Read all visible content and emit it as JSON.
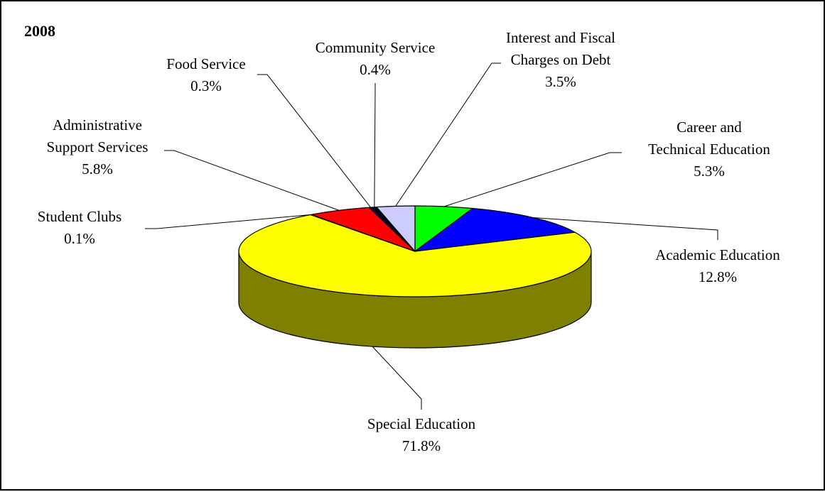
{
  "chart_data": {
    "type": "pie",
    "title": "2008",
    "three_d": true,
    "slices": [
      {
        "name": "Career and Technical Education",
        "label_lines": [
          "Career and",
          "Technical Education"
        ],
        "value": 5.3,
        "value_label": "5.3%",
        "color": "#00FF00"
      },
      {
        "name": "Academic Education",
        "label_lines": [
          "Academic Education"
        ],
        "value": 12.8,
        "value_label": "12.8%",
        "color": "#0000FF"
      },
      {
        "name": "Special Education",
        "label_lines": [
          "Special Education"
        ],
        "value": 71.8,
        "value_label": "71.8%",
        "color": "#FFFF00"
      },
      {
        "name": "Student Clubs",
        "label_lines": [
          "Student Clubs"
        ],
        "value": 0.1,
        "value_label": "0.1%",
        "color": "#800080"
      },
      {
        "name": "Administrative Support Services",
        "label_lines": [
          "Administrative",
          "Support Services"
        ],
        "value": 5.8,
        "value_label": "5.8%",
        "color": "#FF0000"
      },
      {
        "name": "Food Service",
        "label_lines": [
          "Food Service"
        ],
        "value": 0.3,
        "value_label": "0.3%",
        "color": "#000080"
      },
      {
        "name": "Community Service",
        "label_lines": [
          "Community Service"
        ],
        "value": 0.4,
        "value_label": "0.4%",
        "color": "#000000"
      },
      {
        "name": "Interest and Fiscal Charges on Debt",
        "label_lines": [
          "Interest and Fiscal",
          "Charges on Debt"
        ],
        "value": 3.5,
        "value_label": "3.5%",
        "color": "#CCCCFF"
      }
    ],
    "side_color": "#808000"
  }
}
